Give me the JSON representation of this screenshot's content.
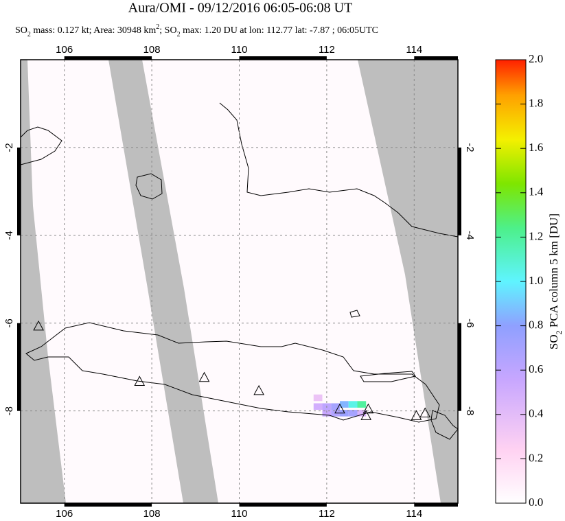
{
  "chart_data": {
    "type": "map",
    "title": "Aura/OMI - 09/12/2016 06:05-06:08 UT",
    "subtitle_parts": [
      "SO",
      "2",
      " mass: 0.127 kt; Area: 30948 km",
      "2",
      "; SO",
      "2",
      " max: 1.20 DU at lon: 112.77 lat: -7.87 ; 06:05UTC"
    ],
    "xlim": [
      105,
      115
    ],
    "ylim": [
      -10.1,
      0
    ],
    "xticks": [
      106,
      108,
      110,
      112,
      114
    ],
    "yticks": [
      -2,
      -4,
      -6,
      -8
    ],
    "volcanoes": {
      "lon": [
        105.41,
        107.72,
        109.2,
        110.45,
        112.3,
        112.95,
        112.9,
        114.05,
        114.25
      ],
      "lat": [
        -6.08,
        -7.34,
        -7.25,
        -7.55,
        -7.97,
        -7.97,
        -8.12,
        -8.12,
        -8.06
      ]
    },
    "so2_pixels": {
      "lon": [
        111.8,
        112.0,
        112.2,
        112.4,
        112.6,
        112.8,
        112.0,
        112.2,
        112.4,
        112.6,
        112.8,
        111.8
      ],
      "lat": [
        -7.9,
        -7.9,
        -7.9,
        -7.85,
        -7.85,
        -7.85,
        -8.05,
        -8.05,
        -8.05,
        -8.05,
        -8.05,
        -7.7
      ],
      "values": [
        0.5,
        0.6,
        0.7,
        0.85,
        1.05,
        1.2,
        0.55,
        0.65,
        0.75,
        0.7,
        0.45,
        0.35
      ]
    },
    "colorbar": {
      "label_parts": [
        "SO",
        "2",
        " PCA column 5 km [DU]"
      ],
      "lim": [
        0,
        2
      ],
      "ticks": [
        {
          "value": 0,
          "label": "0.0"
        },
        0.2,
        0.4,
        0.6,
        0.8,
        {
          "value": 1,
          "label": "1.0"
        },
        1.2,
        1.4,
        1.6,
        1.8,
        {
          "value": 2,
          "label": "2.0"
        }
      ]
    }
  }
}
